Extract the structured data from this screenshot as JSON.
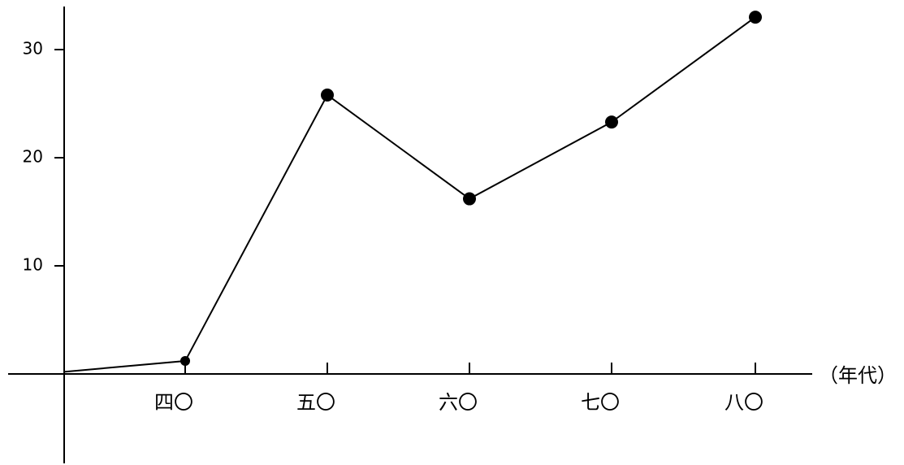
{
  "chart_data": {
    "type": "line",
    "categories": [
      "",
      "四〇",
      "五〇",
      "六〇",
      "七〇",
      "八〇"
    ],
    "series": [
      {
        "values": [
          0.2,
          1.2,
          25.8,
          16.2,
          23.3,
          33.0
        ]
      }
    ],
    "x_unit_label": "（年代）",
    "ylim": [
      0,
      30
    ],
    "yticks": [
      10,
      20,
      30
    ],
    "colors": {
      "line": "#000000",
      "marker": "#000000"
    }
  }
}
